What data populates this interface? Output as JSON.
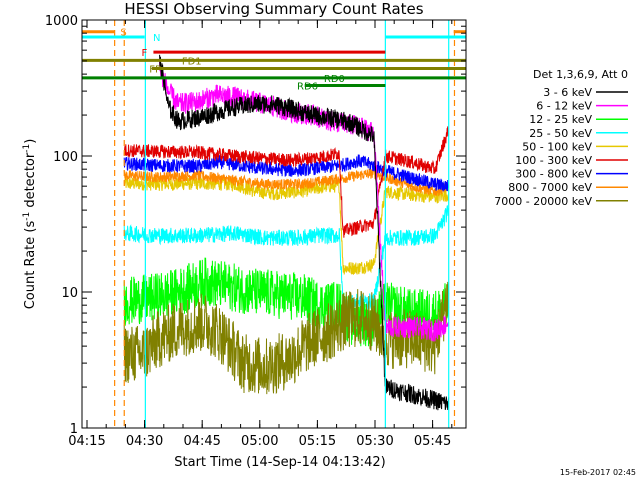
{
  "chart_data": {
    "type": "line",
    "title": "HESSI Observing Summary Count Rates",
    "xlabel": "Start Time (14-Sep-14 04:13:42)",
    "ylabel_main": "Count Rate (s",
    "ylabel_sup1": "-1",
    "ylabel_mid": " detector",
    "ylabel_sup2": "-1",
    "ylabel_end": ")",
    "footer": "15-Feb-2017 02:45",
    "y_scale": "log",
    "ylim": [
      1,
      1000
    ],
    "xlim_minutes": [
      0,
      100
    ],
    "x_ticks": [
      {
        "label": "04:15",
        "t": 1.3
      },
      {
        "label": "04:30",
        "t": 16.3
      },
      {
        "label": "04:45",
        "t": 31.3
      },
      {
        "label": "05:00",
        "t": 46.3
      },
      {
        "label": "05:15",
        "t": 61.3
      },
      {
        "label": "05:30",
        "t": 76.3
      },
      {
        "label": "05:45",
        "t": 91.3
      }
    ],
    "y_ticks": [
      {
        "label": "1",
        "v": 1
      },
      {
        "label": "10",
        "v": 10
      },
      {
        "label": "100",
        "v": 100
      },
      {
        "label": "1000",
        "v": 1000
      }
    ],
    "legend_title": "Det 1,3,6,9, Att 0",
    "legend": [
      {
        "label": "3 - 6 keV",
        "color": "#000000"
      },
      {
        "label": "6 - 12 keV",
        "color": "#ff00ff"
      },
      {
        "label": "12 - 25 keV",
        "color": "#00ff00"
      },
      {
        "label": "25 - 50 keV",
        "color": "#00ffff"
      },
      {
        "label": "50 - 100 keV",
        "color": "#e6c800"
      },
      {
        "label": "100 - 300 keV",
        "color": "#e00000"
      },
      {
        "label": "300 - 800 keV",
        "color": "#0000ff"
      },
      {
        "label": "800 - 7000 keV",
        "color": "#ff8800"
      },
      {
        "label": "7000 - 20000 keV",
        "color": "#808000"
      }
    ],
    "flags": [
      {
        "label": "S",
        "color": "#ff8800",
        "t_start": 0,
        "t_end": 8.5,
        "v": 820,
        "label_t": 10
      },
      {
        "label": "S",
        "color": "#ff8800",
        "t_start": 96.8,
        "t_end": 100,
        "v": 820,
        "label_t": null
      },
      {
        "label": "N",
        "color": "#00ffff",
        "t_start": 0,
        "t_end": 16.3,
        "v": 750,
        "label_t": 18.5
      },
      {
        "label": "N",
        "color": "#00ffff",
        "t_start": 79,
        "t_end": 100,
        "v": 750,
        "label_t": null
      },
      {
        "label": "F",
        "color": "#e00000",
        "t_start": 18.6,
        "t_end": 79,
        "v": 580,
        "label_t": 15.5
      },
      {
        "label": "FD1",
        "color": "#808000",
        "t_start": 0,
        "t_end": 100,
        "v": 505,
        "label_t": 26
      },
      {
        "label": "FP",
        "color": "#808000",
        "t_start": 18.2,
        "t_end": 100,
        "v": 440,
        "label_t": 17.5
      },
      {
        "label": "RD0",
        "color": "#008000",
        "t_start": 0,
        "t_end": 100,
        "v": 375,
        "label_t": 63
      },
      {
        "label": "RD6",
        "color": "#008000",
        "t_start": 58,
        "t_end": 79,
        "v": 330,
        "label_t": 56
      }
    ],
    "vlines": [
      {
        "t": 8.5,
        "color": "#ff8800",
        "style": "dashed"
      },
      {
        "t": 11,
        "color": "#ff8800",
        "style": "dashed"
      },
      {
        "t": 16.5,
        "color": "#00ffff",
        "style": "solid"
      },
      {
        "t": 79,
        "color": "#00ffff",
        "style": "solid"
      },
      {
        "t": 95.5,
        "color": "#00ffff",
        "style": "solid"
      },
      {
        "t": 97,
        "color": "#ff8800",
        "style": "dashed"
      }
    ],
    "series": [
      {
        "color": "#e6c800",
        "noise": 0.05,
        "points": [
          [
            11,
            63
          ],
          [
            20,
            62
          ],
          [
            30,
            63
          ],
          [
            40,
            62
          ],
          [
            45,
            55
          ],
          [
            50,
            53
          ],
          [
            57,
            55
          ],
          [
            64,
            60
          ],
          [
            67,
            60
          ],
          [
            68,
            15
          ],
          [
            72,
            15
          ],
          [
            76,
            16
          ],
          [
            79,
            55
          ],
          [
            85,
            52
          ],
          [
            92,
            50
          ],
          [
            95.5,
            52
          ]
        ]
      },
      {
        "color": "#ff8800",
        "noise": 0.04,
        "points": [
          [
            11,
            72
          ],
          [
            20,
            70
          ],
          [
            30,
            72
          ],
          [
            40,
            66
          ],
          [
            48,
            62
          ],
          [
            57,
            62
          ],
          [
            67,
            68
          ],
          [
            72,
            72
          ],
          [
            76,
            75
          ],
          [
            79,
            70
          ],
          [
            86,
            60
          ],
          [
            92,
            55
          ],
          [
            95.5,
            60
          ]
        ]
      },
      {
        "color": "#0000ff",
        "noise": 0.05,
        "points": [
          [
            11,
            88
          ],
          [
            20,
            85
          ],
          [
            30,
            84
          ],
          [
            36,
            90
          ],
          [
            45,
            82
          ],
          [
            55,
            78
          ],
          [
            62,
            82
          ],
          [
            67,
            85
          ],
          [
            72,
            92
          ],
          [
            76,
            85
          ],
          [
            79,
            78
          ],
          [
            85,
            70
          ],
          [
            92,
            62
          ],
          [
            95.5,
            60
          ]
        ]
      },
      {
        "color": "#e00000",
        "noise": 0.05,
        "points": [
          [
            11,
            110
          ],
          [
            20,
            108
          ],
          [
            30,
            106
          ],
          [
            40,
            100
          ],
          [
            47,
            96
          ],
          [
            55,
            93
          ],
          [
            64,
            100
          ],
          [
            67,
            105
          ],
          [
            68,
            28
          ],
          [
            72,
            30
          ],
          [
            76,
            32
          ],
          [
            79,
            100
          ],
          [
            86,
            90
          ],
          [
            92,
            80
          ],
          [
            95.5,
            160
          ]
        ]
      },
      {
        "color": "#00ffff",
        "noise": 0.06,
        "points": [
          [
            11,
            27
          ],
          [
            20,
            26
          ],
          [
            30,
            26
          ],
          [
            40,
            27
          ],
          [
            48,
            25
          ],
          [
            56,
            25
          ],
          [
            62,
            26
          ],
          [
            67,
            26
          ],
          [
            68,
            8
          ],
          [
            72,
            8.5
          ],
          [
            76,
            8.5
          ],
          [
            79,
            25
          ],
          [
            86,
            25
          ],
          [
            92,
            26
          ],
          [
            95.5,
            40
          ]
        ]
      },
      {
        "color": "#00ff00",
        "noise": 0.18,
        "points": [
          [
            11,
            8.5
          ],
          [
            18,
            9
          ],
          [
            25,
            10
          ],
          [
            32,
            12
          ],
          [
            38,
            11
          ],
          [
            45,
            10
          ],
          [
            52,
            9.5
          ],
          [
            58,
            9
          ],
          [
            62,
            8
          ],
          [
            67,
            8
          ],
          [
            70,
            6
          ],
          [
            76,
            6
          ],
          [
            79,
            8
          ],
          [
            86,
            7
          ],
          [
            92,
            7
          ],
          [
            95.5,
            8
          ]
        ]
      },
      {
        "color": "#808000",
        "noise": 0.22,
        "points": [
          [
            11,
            3.5
          ],
          [
            16,
            3.5
          ],
          [
            20,
            4.5
          ],
          [
            26,
            5.5
          ],
          [
            32,
            6
          ],
          [
            36,
            5
          ],
          [
            42,
            3
          ],
          [
            48,
            2.8
          ],
          [
            54,
            3.2
          ],
          [
            60,
            4.5
          ],
          [
            64,
            5
          ],
          [
            68,
            6
          ],
          [
            72,
            6.5
          ],
          [
            76,
            6
          ],
          [
            79,
            4.5
          ],
          [
            86,
            4.5
          ],
          [
            92,
            4
          ],
          [
            95.5,
            10
          ]
        ]
      },
      {
        "color": "#ff00ff",
        "noise": 0.08,
        "points": [
          [
            20.2,
            440
          ],
          [
            21,
            380
          ],
          [
            22.5,
            300
          ],
          [
            25,
            240
          ],
          [
            30,
            250
          ],
          [
            35,
            280
          ],
          [
            40,
            270
          ],
          [
            45,
            250
          ],
          [
            50,
            230
          ],
          [
            55,
            210
          ],
          [
            60,
            200
          ],
          [
            65,
            180
          ],
          [
            70,
            170
          ],
          [
            76,
            150
          ],
          [
            79,
            5.5
          ],
          [
            86,
            5.5
          ],
          [
            92,
            5.2
          ],
          [
            95.5,
            6
          ]
        ]
      },
      {
        "color": "#000000",
        "noise": 0.07,
        "points": [
          [
            20.2,
            500
          ],
          [
            21,
            400
          ],
          [
            22.5,
            230
          ],
          [
            25,
            180
          ],
          [
            30,
            190
          ],
          [
            35,
            210
          ],
          [
            40,
            230
          ],
          [
            45,
            240
          ],
          [
            50,
            240
          ],
          [
            55,
            220
          ],
          [
            60,
            200
          ],
          [
            65,
            190
          ],
          [
            70,
            175
          ],
          [
            76,
            140
          ],
          [
            79,
            2
          ],
          [
            95.5,
            1.5
          ]
        ]
      }
    ]
  }
}
